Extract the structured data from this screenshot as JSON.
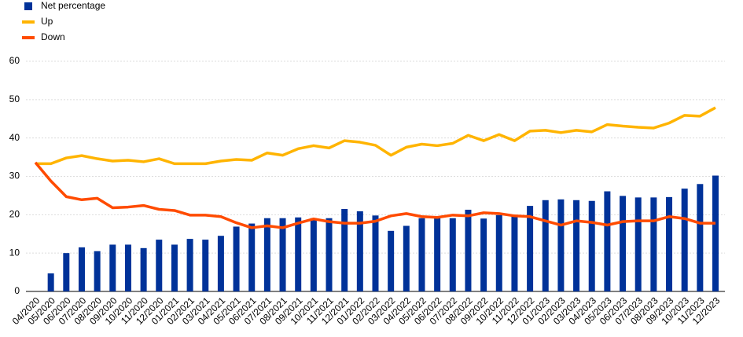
{
  "chart_data": {
    "type": "bar-line",
    "categories": [
      "04/2020",
      "05/2020",
      "06/2020",
      "07/2020",
      "08/2020",
      "09/2020",
      "10/2020",
      "11/2020",
      "12/2020",
      "01/2021",
      "02/2021",
      "03/2021",
      "04/2021",
      "05/2021",
      "06/2021",
      "07/2021",
      "08/2021",
      "09/2021",
      "10/2021",
      "11/2021",
      "12/2021",
      "01/2022",
      "02/2022",
      "03/2022",
      "04/2022",
      "05/2022",
      "06/2022",
      "07/2022",
      "08/2022",
      "09/2022",
      "10/2022",
      "11/2022",
      "12/2022",
      "01/2023",
      "02/2023",
      "03/2023",
      "04/2023",
      "05/2023",
      "06/2023",
      "07/2023",
      "08/2023",
      "09/2023",
      "10/2023",
      "11/2023",
      "12/2023"
    ],
    "series": [
      {
        "name": "Net percentage",
        "type": "bar",
        "color": "#003299",
        "values": [
          null,
          4.7,
          10,
          11.5,
          10.5,
          12.2,
          12.2,
          11.3,
          13.5,
          12.2,
          13.7,
          13.5,
          14.5,
          16.9,
          17.7,
          19.1,
          19.1,
          19.3,
          19.1,
          19.1,
          21.5,
          20.9,
          19.8,
          15.8,
          17.1,
          19.1,
          19.1,
          19.1,
          21.3,
          19.0,
          19.9,
          19.5,
          22.3,
          23.8,
          24.0,
          23.8,
          23.6,
          26.1,
          24.9,
          24.5,
          24.5,
          24.6,
          26.8,
          28.0,
          30.2
        ]
      },
      {
        "name": "Up",
        "type": "line",
        "color": "#ffb400",
        "values": [
          33.3,
          33.3,
          34.8,
          35.4,
          34.6,
          34.0,
          34.2,
          33.8,
          34.6,
          33.3,
          33.3,
          33.3,
          34.0,
          34.4,
          34.2,
          36.1,
          35.5,
          37.2,
          38.0,
          37.4,
          39.3,
          38.9,
          38.1,
          35.5,
          37.6,
          38.4,
          38.0,
          38.6,
          40.7,
          39.3,
          40.9,
          39.3,
          41.8,
          42.0,
          41.4,
          42.0,
          41.6,
          43.5,
          43.1,
          42.8,
          42.6,
          43.9,
          45.9,
          45.7,
          47.9
        ]
      },
      {
        "name": "Down",
        "type": "line",
        "color": "#ff4b00",
        "values": [
          33.6,
          28.8,
          24.7,
          23.9,
          24.3,
          21.8,
          22.0,
          22.4,
          21.4,
          21.1,
          19.9,
          19.9,
          19.5,
          17.9,
          16.6,
          17.1,
          16.6,
          17.8,
          18.9,
          18.2,
          17.8,
          17.8,
          18.3,
          19.7,
          20.3,
          19.5,
          19.3,
          19.9,
          19.7,
          20.5,
          20.3,
          19.7,
          19.5,
          18.4,
          17.3,
          18.4,
          18.0,
          17.3,
          18.2,
          18.4,
          18.4,
          19.5,
          19.0,
          17.8,
          17.8
        ]
      }
    ],
    "ylim": [
      0,
      60
    ],
    "yticks": [
      0,
      10,
      20,
      30,
      40,
      50,
      60
    ],
    "grid": true,
    "legend": "top-left"
  }
}
